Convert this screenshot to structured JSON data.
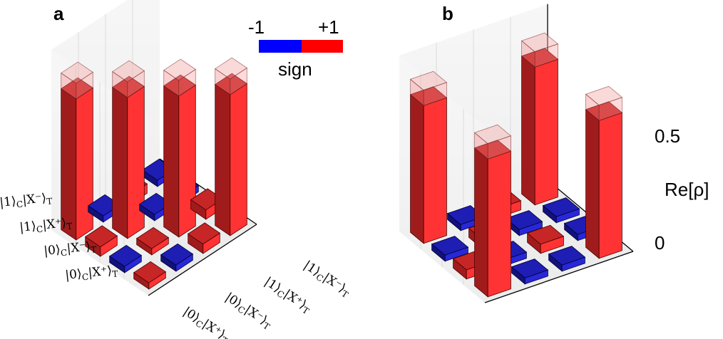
{
  "figure": {
    "panel_a_label": "a",
    "panel_b_label": "b"
  },
  "colorbar": {
    "min_label": "-1",
    "max_label": "+1",
    "title": "sign",
    "negative_color": "#0000ff",
    "positive_color": "#ff0000"
  },
  "chart_data": [
    {
      "type": "bar3d",
      "panel": "a",
      "row_labels": [
        "|1⟩_C|X⁻⟩_T",
        "|1⟩_C|X⁺⟩_T",
        "|0⟩_C|X⁻⟩_T",
        "|0⟩_C|X⁺⟩_T"
      ],
      "col_labels": [
        "|0⟩_C|X⁺⟩_T",
        "|0⟩_C|X⁻⟩_T",
        "|1⟩_C|X⁺⟩_T",
        "|1⟩_C|X⁻⟩_T"
      ],
      "values": [
        [
          0.45,
          -0.02,
          0.03,
          -0.02
        ],
        [
          0.03,
          0.45,
          -0.02,
          -0.02
        ],
        [
          -0.02,
          0.02,
          0.45,
          0.03
        ],
        [
          0.02,
          -0.02,
          0.03,
          0.45
        ]
      ],
      "ideal": [
        [
          0.5,
          0,
          0,
          0
        ],
        [
          0,
          0.5,
          0,
          0
        ],
        [
          0,
          0,
          0.5,
          0
        ],
        [
          0,
          0,
          0,
          0.5
        ]
      ],
      "zlim": [
        0,
        0.5
      ]
    },
    {
      "type": "bar3d",
      "panel": "b",
      "values": [
        [
          0.45,
          -0.02,
          0.03,
          0.45
        ],
        [
          -0.02,
          0.03,
          -0.02,
          -0.02
        ],
        [
          0.03,
          -0.02,
          0.03,
          -0.02
        ],
        [
          0.45,
          -0.02,
          -0.02,
          0.45
        ]
      ],
      "ideal": [
        [
          0.5,
          0,
          0,
          0.5
        ],
        [
          0,
          0,
          0,
          0
        ],
        [
          0,
          0,
          0,
          0
        ],
        [
          0.5,
          0,
          0,
          0.5
        ]
      ],
      "zlabel": "Re[ρ]",
      "zticks": [
        "0",
        "0.5"
      ],
      "zlim": [
        0,
        0.5
      ]
    }
  ]
}
